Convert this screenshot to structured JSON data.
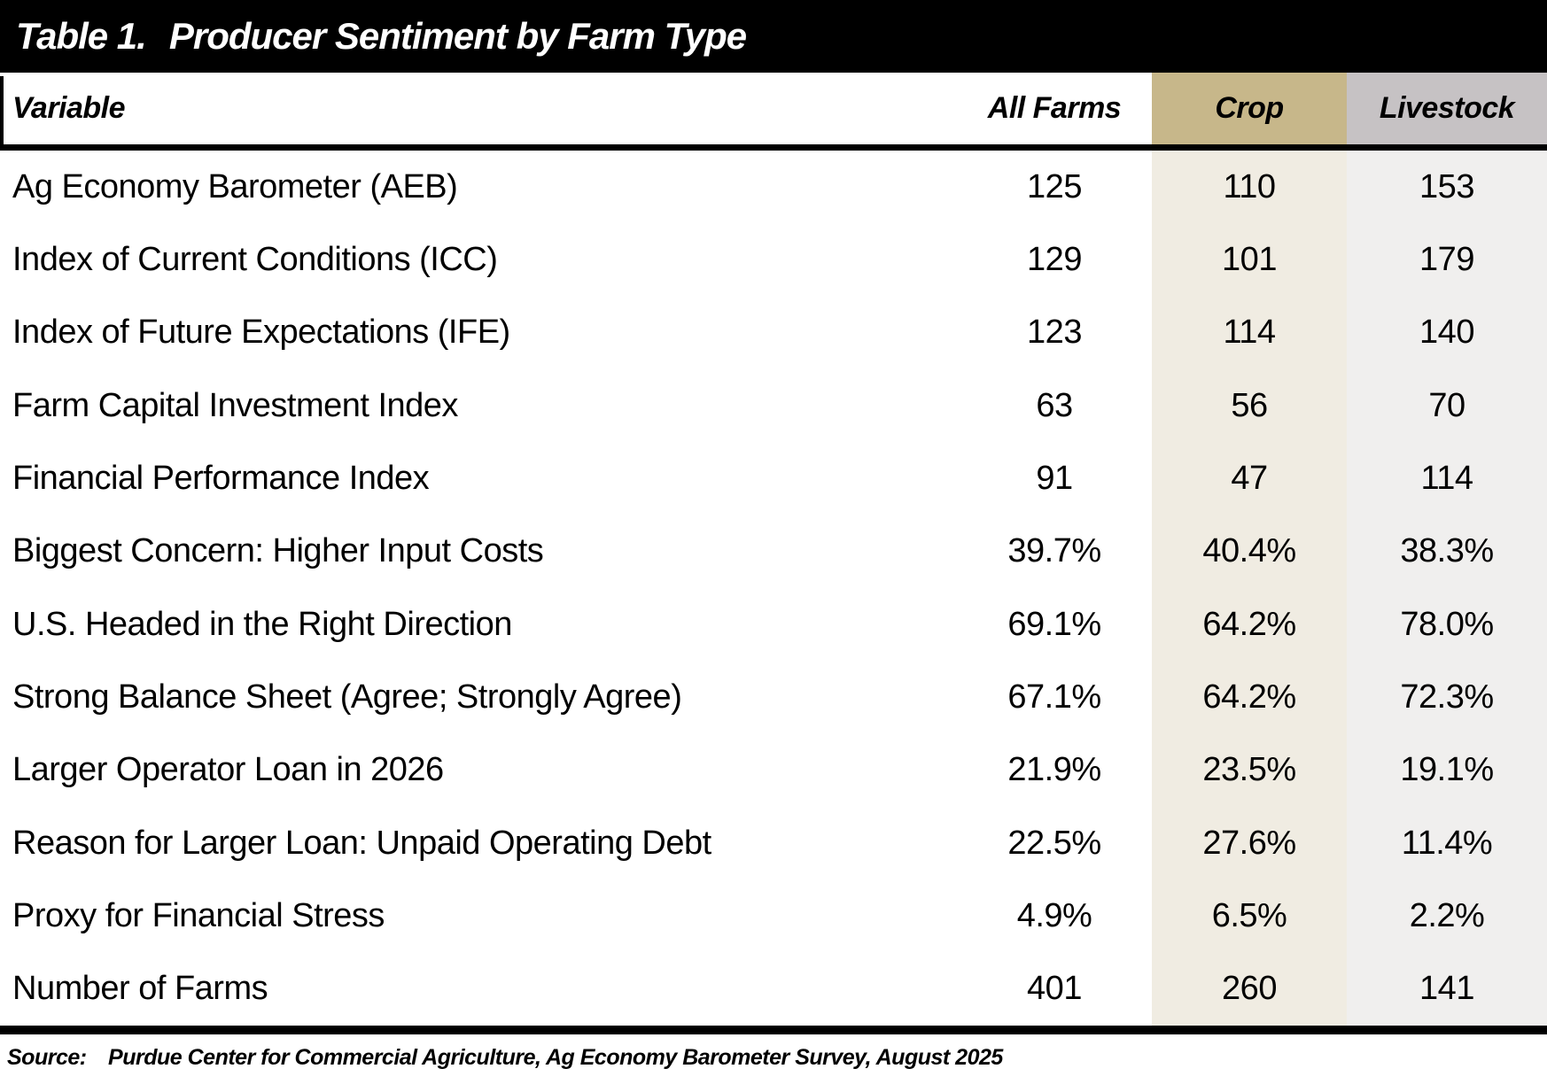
{
  "title": {
    "prefix": "Table 1.",
    "text": "Producer Sentiment by Farm Type"
  },
  "header": {
    "variable": "Variable",
    "all_farms": "All Farms",
    "crop": "Crop",
    "livestock": "Livestock"
  },
  "rows": [
    {
      "label": "Ag Economy Barometer (AEB)",
      "values": [
        "125",
        "110",
        "153"
      ]
    },
    {
      "label": "Index of Current Conditions (ICC)",
      "values": [
        "129",
        "101",
        "179"
      ]
    },
    {
      "label": "Index of Future Expectations (IFE)",
      "values": [
        "123",
        "114",
        "140"
      ]
    },
    {
      "label": "Farm Capital Investment Index",
      "values": [
        "63",
        "56",
        "70"
      ]
    },
    {
      "label": "Financial Performance Index",
      "values": [
        "91",
        "47",
        "114"
      ]
    },
    {
      "label": "Biggest Concern: Higher Input Costs",
      "values": [
        "39.7%",
        "40.4%",
        "38.3%"
      ]
    },
    {
      "label": "U.S. Headed in the Right Direction",
      "values": [
        "69.1%",
        "64.2%",
        "78.0%"
      ]
    },
    {
      "label": "Strong Balance Sheet (Agree; Strongly Agree)",
      "values": [
        "67.1%",
        "64.2%",
        "72.3%"
      ]
    },
    {
      "label": "Larger Operator Loan in 2026",
      "values": [
        "21.9%",
        "23.5%",
        "19.1%"
      ]
    },
    {
      "label": "Reason for Larger Loan: Unpaid Operating Debt",
      "values": [
        "22.5%",
        "27.6%",
        "11.4%"
      ]
    },
    {
      "label": "Proxy for Financial Stress",
      "values": [
        "4.9%",
        "6.5%",
        "2.2%"
      ]
    },
    {
      "label": "Number of Farms",
      "values": [
        "401",
        "260",
        "141"
      ]
    }
  ],
  "source": {
    "label": "Source:",
    "text": "Purdue Center for Commercial Agriculture, Ag Economy Barometer Survey, August 2025"
  },
  "colors": {
    "bar": "#000000",
    "title_text": "#FFFFFF",
    "body_text": "#000000",
    "crop_header_bg": "#C7B78A",
    "livestock_header_bg": "#C6C2C4",
    "crop_body_bg": "#F0ECE2",
    "livestock_body_bg": "#F0EFEE"
  }
}
